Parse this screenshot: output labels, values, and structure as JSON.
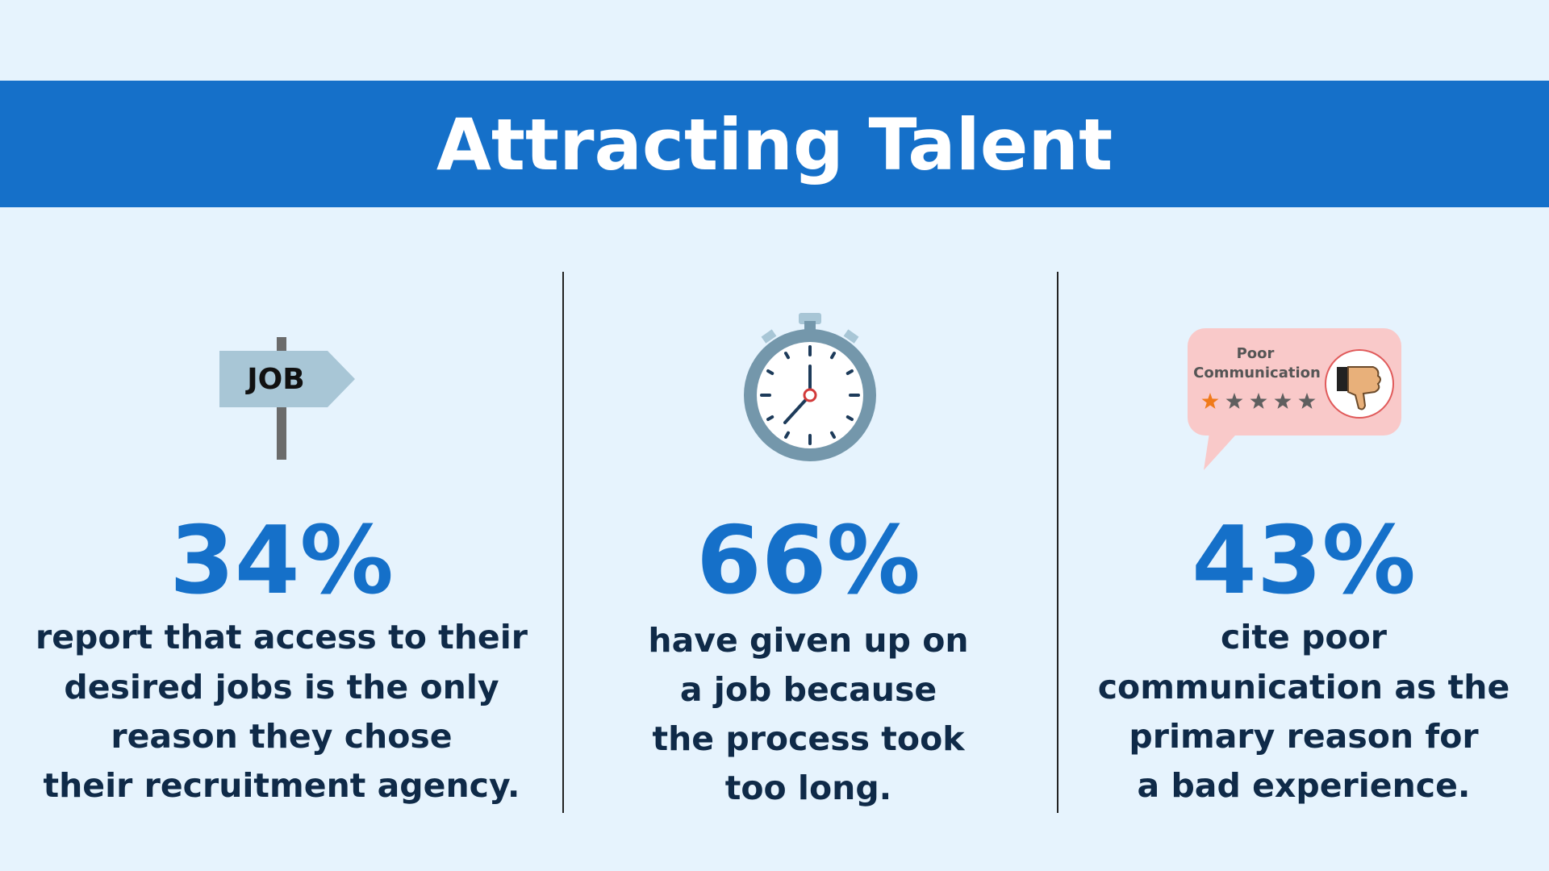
{
  "header": {
    "title": "Attracting Talent"
  },
  "stats": [
    {
      "icon_text": [
        "JOB"
      ],
      "figure": "34%",
      "text": [
        "report that access to their",
        "desired jobs is the only",
        "reason they chose",
        "their recruitment agency."
      ]
    },
    {
      "icon_text": [],
      "figure": "66%",
      "text": [
        "have given up on",
        "a job because",
        "the process took",
        "too long."
      ]
    },
    {
      "icon_text": [
        "Poor",
        "Communication"
      ],
      "figure": "43%",
      "text": [
        "cite poor",
        "communication as the",
        "primary reason for",
        "a bad experience."
      ]
    }
  ]
}
